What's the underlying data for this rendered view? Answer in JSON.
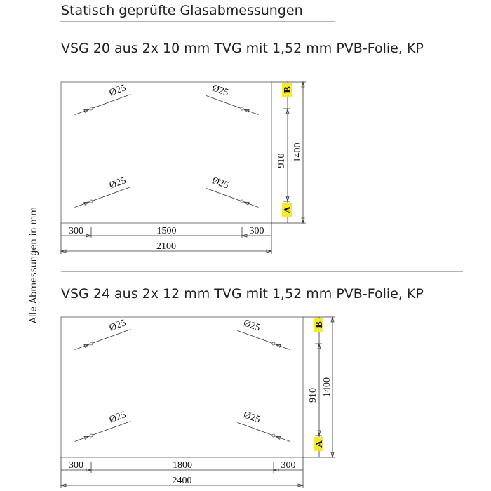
{
  "header": {
    "title": "Statisch geprüfte Glasabmessungen"
  },
  "side_note": "Alle Abmessungen in mm",
  "panels": [
    {
      "title": "VSG 20 aus 2x 10 mm TVG mit 1,52 mm PVB-Folie, KP",
      "holes": [
        "Ø25",
        "Ø25",
        "Ø25",
        "Ø25"
      ],
      "markers": [
        "B",
        "A"
      ],
      "dims": {
        "hole_spacing": "910",
        "height": "1400",
        "edge_left": "300",
        "middle": "1500",
        "edge_right": "300",
        "width": "2100"
      }
    },
    {
      "title": "VSG 24 aus 2x 12 mm TVG mit 1,52 mm PVB-Folie, KP",
      "holes": [
        "Ø25",
        "Ø25",
        "Ø25",
        "Ø25"
      ],
      "markers": [
        "B",
        "A"
      ],
      "dims": {
        "hole_spacing": "910",
        "height": "1400",
        "edge_left": "300",
        "middle": "1800",
        "edge_right": "300",
        "width": "2400"
      }
    }
  ]
}
